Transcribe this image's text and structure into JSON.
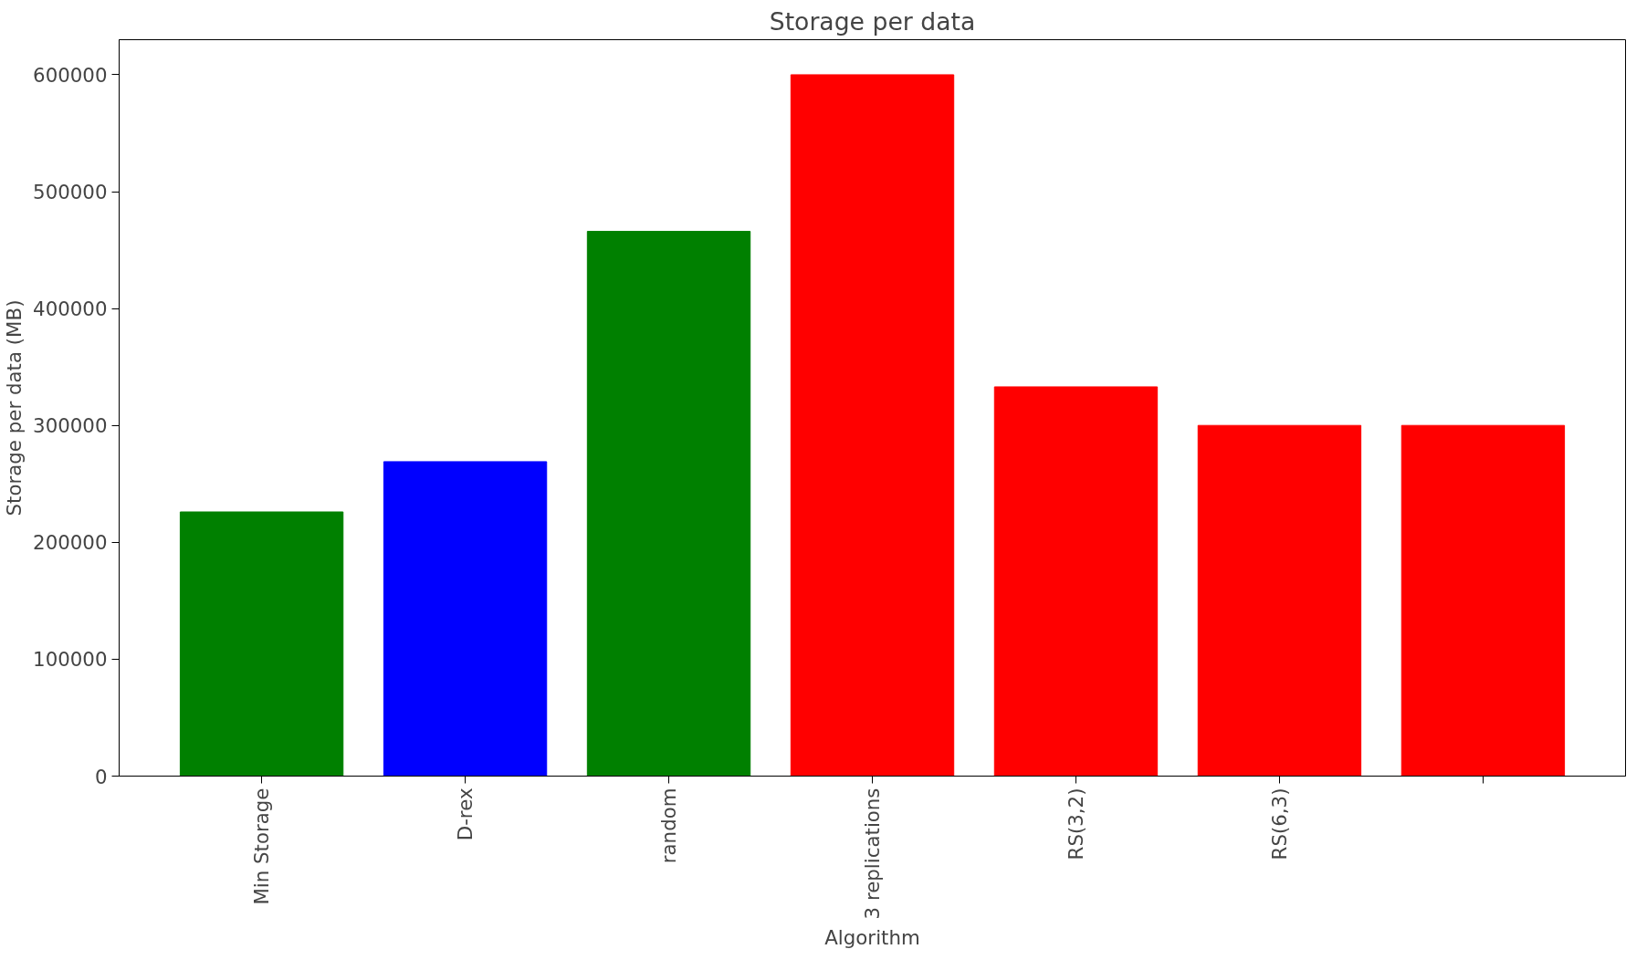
{
  "chart_data": {
    "type": "bar",
    "title": "Storage per data",
    "xlabel": "Algorithm",
    "ylabel": "Storage per data (MB)",
    "categories": [
      "Min Storage",
      "D-rex",
      "random",
      "3 replications",
      "RS(3,2)",
      "RS(6,3)",
      null
    ],
    "values": [
      226000,
      269000,
      466000,
      600000,
      333000,
      300000,
      300000
    ],
    "colors": [
      "#008000",
      "#0000ff",
      "#008000",
      "#ff0000",
      "#ff0000",
      "#ff0000",
      "#ff0000"
    ],
    "ylim": [
      0,
      630000
    ],
    "yticks": [
      0,
      100000,
      200000,
      300000,
      400000,
      500000,
      600000
    ],
    "grid": false
  }
}
